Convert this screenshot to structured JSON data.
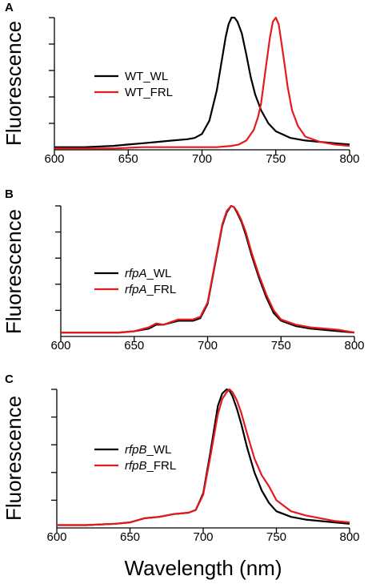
{
  "chart_data": [
    {
      "type": "line",
      "panel_label": "A",
      "ylabel": "Fluorescence",
      "xlabel": "",
      "xlim": [
        600,
        800
      ],
      "ylim": [
        0,
        1.0
      ],
      "xticks": [
        600,
        650,
        700,
        750,
        800
      ],
      "yticks_count": 5,
      "legend": "center-left",
      "series": [
        {
          "name": "WT_WL",
          "label_parts": [
            {
              "text": "WT_WL",
              "italic": false
            }
          ],
          "color": "#000000",
          "x": [
            600,
            620,
            640,
            650,
            660,
            670,
            680,
            690,
            695,
            700,
            705,
            710,
            713,
            716,
            718,
            720,
            722,
            724,
            727,
            730,
            733,
            736,
            740,
            745,
            750,
            760,
            770,
            780,
            790,
            800
          ],
          "y": [
            0.02,
            0.02,
            0.03,
            0.04,
            0.05,
            0.06,
            0.07,
            0.08,
            0.09,
            0.12,
            0.22,
            0.45,
            0.65,
            0.85,
            0.95,
            1.0,
            1.0,
            0.97,
            0.88,
            0.72,
            0.55,
            0.42,
            0.3,
            0.2,
            0.14,
            0.09,
            0.07,
            0.06,
            0.05,
            0.04
          ]
        },
        {
          "name": "WT_FRL",
          "label_parts": [
            {
              "text": "WT_FRL",
              "italic": false
            }
          ],
          "color": "#e41a1c",
          "x": [
            600,
            620,
            640,
            660,
            680,
            700,
            710,
            720,
            725,
            730,
            735,
            738,
            740,
            743,
            746,
            748,
            750,
            752,
            755,
            758,
            761,
            765,
            770,
            780,
            790,
            800
          ],
          "y": [
            0.01,
            0.01,
            0.01,
            0.02,
            0.02,
            0.02,
            0.02,
            0.03,
            0.04,
            0.07,
            0.15,
            0.25,
            0.35,
            0.6,
            0.85,
            0.97,
            1.0,
            0.95,
            0.72,
            0.48,
            0.3,
            0.18,
            0.1,
            0.06,
            0.04,
            0.03
          ]
        }
      ]
    },
    {
      "type": "line",
      "panel_label": "B",
      "ylabel": "Fluorescence",
      "xlabel": "",
      "xlim": [
        600,
        800
      ],
      "ylim": [
        0,
        1.0
      ],
      "xticks": [
        600,
        650,
        700,
        750,
        800
      ],
      "yticks_count": 5,
      "legend": "center-left",
      "series": [
        {
          "name": "rfpA_WL",
          "label_parts": [
            {
              "text": "rfpA",
              "italic": true
            },
            {
              "text": "_WL",
              "italic": false
            }
          ],
          "color": "#000000",
          "x": [
            600,
            620,
            640,
            650,
            660,
            665,
            670,
            680,
            690,
            695,
            700,
            705,
            710,
            713,
            716,
            718,
            720,
            723,
            726,
            730,
            735,
            740,
            745,
            750,
            760,
            770,
            780,
            790,
            800
          ],
          "y": [
            0.03,
            0.03,
            0.03,
            0.04,
            0.06,
            0.09,
            0.09,
            0.12,
            0.12,
            0.14,
            0.25,
            0.55,
            0.85,
            0.95,
            1.0,
            0.99,
            0.95,
            0.88,
            0.78,
            0.62,
            0.45,
            0.3,
            0.18,
            0.12,
            0.08,
            0.06,
            0.05,
            0.04,
            0.03
          ]
        },
        {
          "name": "rfpA_FRL",
          "label_parts": [
            {
              "text": "rfpA",
              "italic": true
            },
            {
              "text": "_FRL",
              "italic": false
            }
          ],
          "color": "#e41a1c",
          "x": [
            600,
            620,
            640,
            650,
            660,
            665,
            670,
            680,
            690,
            695,
            700,
            705,
            710,
            713,
            716,
            718,
            720,
            723,
            726,
            730,
            735,
            740,
            745,
            750,
            760,
            770,
            780,
            790,
            800
          ],
          "y": [
            0.03,
            0.03,
            0.03,
            0.04,
            0.07,
            0.1,
            0.09,
            0.13,
            0.13,
            0.15,
            0.26,
            0.56,
            0.86,
            0.96,
            1.0,
            0.99,
            0.96,
            0.89,
            0.8,
            0.64,
            0.47,
            0.32,
            0.2,
            0.13,
            0.09,
            0.07,
            0.06,
            0.05,
            0.03
          ]
        }
      ]
    },
    {
      "type": "line",
      "panel_label": "C",
      "ylabel": "Fluorescence",
      "xlabel": "Wavelength (nm)",
      "xlim": [
        600,
        800
      ],
      "ylim": [
        0,
        1.0
      ],
      "xticks": [
        600,
        650,
        700,
        750,
        800
      ],
      "yticks_count": 5,
      "legend": "center-left",
      "series": [
        {
          "name": "rfpB_WL",
          "label_parts": [
            {
              "text": "rfpB",
              "italic": true
            },
            {
              "text": "_WL",
              "italic": false
            }
          ],
          "color": "#000000",
          "x": [
            600,
            620,
            640,
            650,
            660,
            670,
            680,
            690,
            695,
            700,
            705,
            710,
            713,
            716,
            718,
            720,
            723,
            726,
            730,
            735,
            740,
            745,
            750,
            760,
            770,
            780,
            790,
            800
          ],
          "y": [
            0.02,
            0.02,
            0.03,
            0.04,
            0.07,
            0.08,
            0.1,
            0.11,
            0.13,
            0.25,
            0.55,
            0.88,
            0.97,
            1.0,
            0.99,
            0.95,
            0.86,
            0.75,
            0.58,
            0.4,
            0.27,
            0.18,
            0.12,
            0.08,
            0.06,
            0.05,
            0.04,
            0.03
          ]
        },
        {
          "name": "rfpB_FRL",
          "label_parts": [
            {
              "text": "rfpB",
              "italic": true
            },
            {
              "text": "_FRL",
              "italic": false
            }
          ],
          "color": "#e41a1c",
          "x": [
            600,
            620,
            640,
            650,
            660,
            670,
            680,
            690,
            695,
            700,
            705,
            710,
            713,
            716,
            718,
            720,
            723,
            726,
            730,
            735,
            740,
            745,
            750,
            760,
            770,
            780,
            790,
            800
          ],
          "y": [
            0.02,
            0.02,
            0.03,
            0.04,
            0.07,
            0.08,
            0.1,
            0.11,
            0.13,
            0.24,
            0.52,
            0.82,
            0.93,
            0.98,
            1.0,
            0.98,
            0.92,
            0.83,
            0.68,
            0.5,
            0.38,
            0.3,
            0.2,
            0.12,
            0.09,
            0.07,
            0.05,
            0.04
          ]
        }
      ]
    }
  ]
}
